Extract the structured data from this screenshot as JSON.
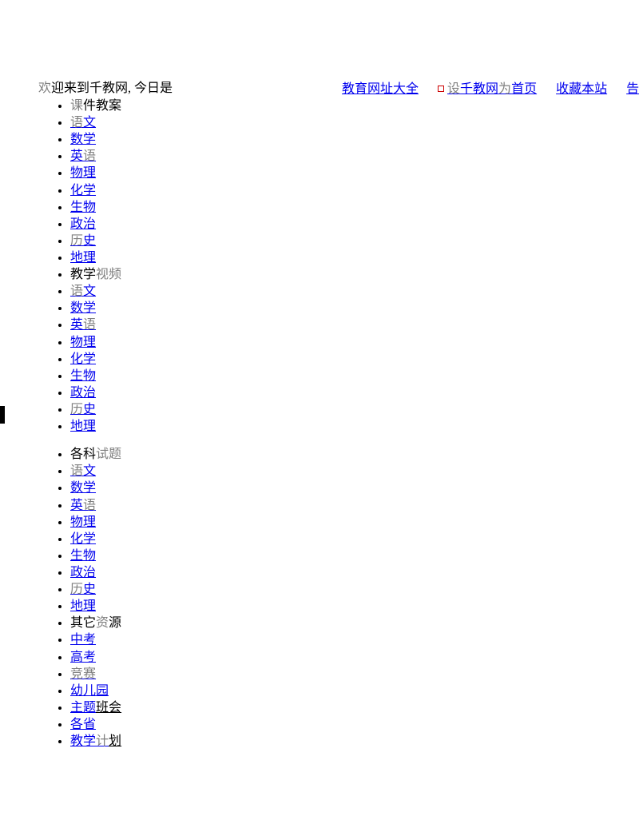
{
  "header": {
    "welcome_prefix_gray": "欢",
    "welcome_rest": "迎来到千教网, 今日是",
    "links": {
      "edu_sites": "教育网址大全",
      "set_home_pre": "设",
      "set_home_mid": "千教网",
      "set_home_gray": "为",
      "set_home_end": "首页",
      "favorite": "收藏本站",
      "tell": "告"
    }
  },
  "sections": [
    {
      "title_pre_gray": "课",
      "title_rest": "件教案",
      "items": [
        {
          "pre_gray": "语",
          "rest": "文"
        },
        {
          "pre_gray": "",
          "rest": "数学"
        },
        {
          "pre_gray": "",
          "rest": "英",
          "post_gray": "语"
        },
        {
          "pre_gray": "",
          "rest": "物理"
        },
        {
          "pre_gray": "",
          "rest": "化学"
        },
        {
          "pre_gray": "",
          "rest": "生物"
        },
        {
          "pre_gray": "",
          "rest": "政治"
        },
        {
          "pre_gray": "历",
          "rest": "史"
        },
        {
          "pre_gray": "",
          "rest": "地理"
        }
      ]
    },
    {
      "title_pre": "教学",
      "title_gray": "视频",
      "items": [
        {
          "pre_gray": "语",
          "rest": "文"
        },
        {
          "pre_gray": "",
          "rest": "数学"
        },
        {
          "pre_gray": "",
          "rest": "英",
          "post_gray": "语"
        },
        {
          "pre_gray": "",
          "rest": "物理"
        },
        {
          "pre_gray": "",
          "rest": "化学"
        },
        {
          "pre_gray": "",
          "rest": "生物"
        },
        {
          "pre_gray": "",
          "rest": "政治"
        },
        {
          "pre_gray": "历",
          "rest": "史"
        },
        {
          "pre_gray": "",
          "rest": "地理"
        }
      ]
    },
    {
      "title_pre": "各科",
      "title_gray": "试题",
      "spacer_before": true,
      "items": [
        {
          "pre_gray": "语",
          "rest": "文"
        },
        {
          "pre_gray": "",
          "rest": "数学"
        },
        {
          "pre_gray": "",
          "rest": "英",
          "post_gray": "语"
        },
        {
          "pre_gray": "",
          "rest": "物理"
        },
        {
          "pre_gray": "",
          "rest": "化学"
        },
        {
          "pre_gray": "",
          "rest": "生物"
        },
        {
          "pre_gray": "",
          "rest": "政治"
        },
        {
          "pre_gray": "历",
          "rest": "史"
        },
        {
          "pre_gray": "",
          "rest": "地理"
        }
      ]
    },
    {
      "title_pre": "其它",
      "title_gray_mid": "资",
      "title_end": "源",
      "no_bullet_gap": true,
      "items": [
        {
          "pre_gray": "",
          "rest": "中考"
        },
        {
          "pre_gray": "",
          "rest": "高考"
        },
        {
          "all_gray": "竞赛"
        },
        {
          "pre_gray": "",
          "rest": "幼儿园"
        },
        {
          "pre_gray": "",
          "rest": "主题",
          "post_black": "班会"
        },
        {
          "pre_gray": "",
          "rest": "各省"
        },
        {
          "pre_gray": "",
          "rest": "教学",
          "post_gray": "计",
          "post_black": "划"
        }
      ]
    }
  ]
}
